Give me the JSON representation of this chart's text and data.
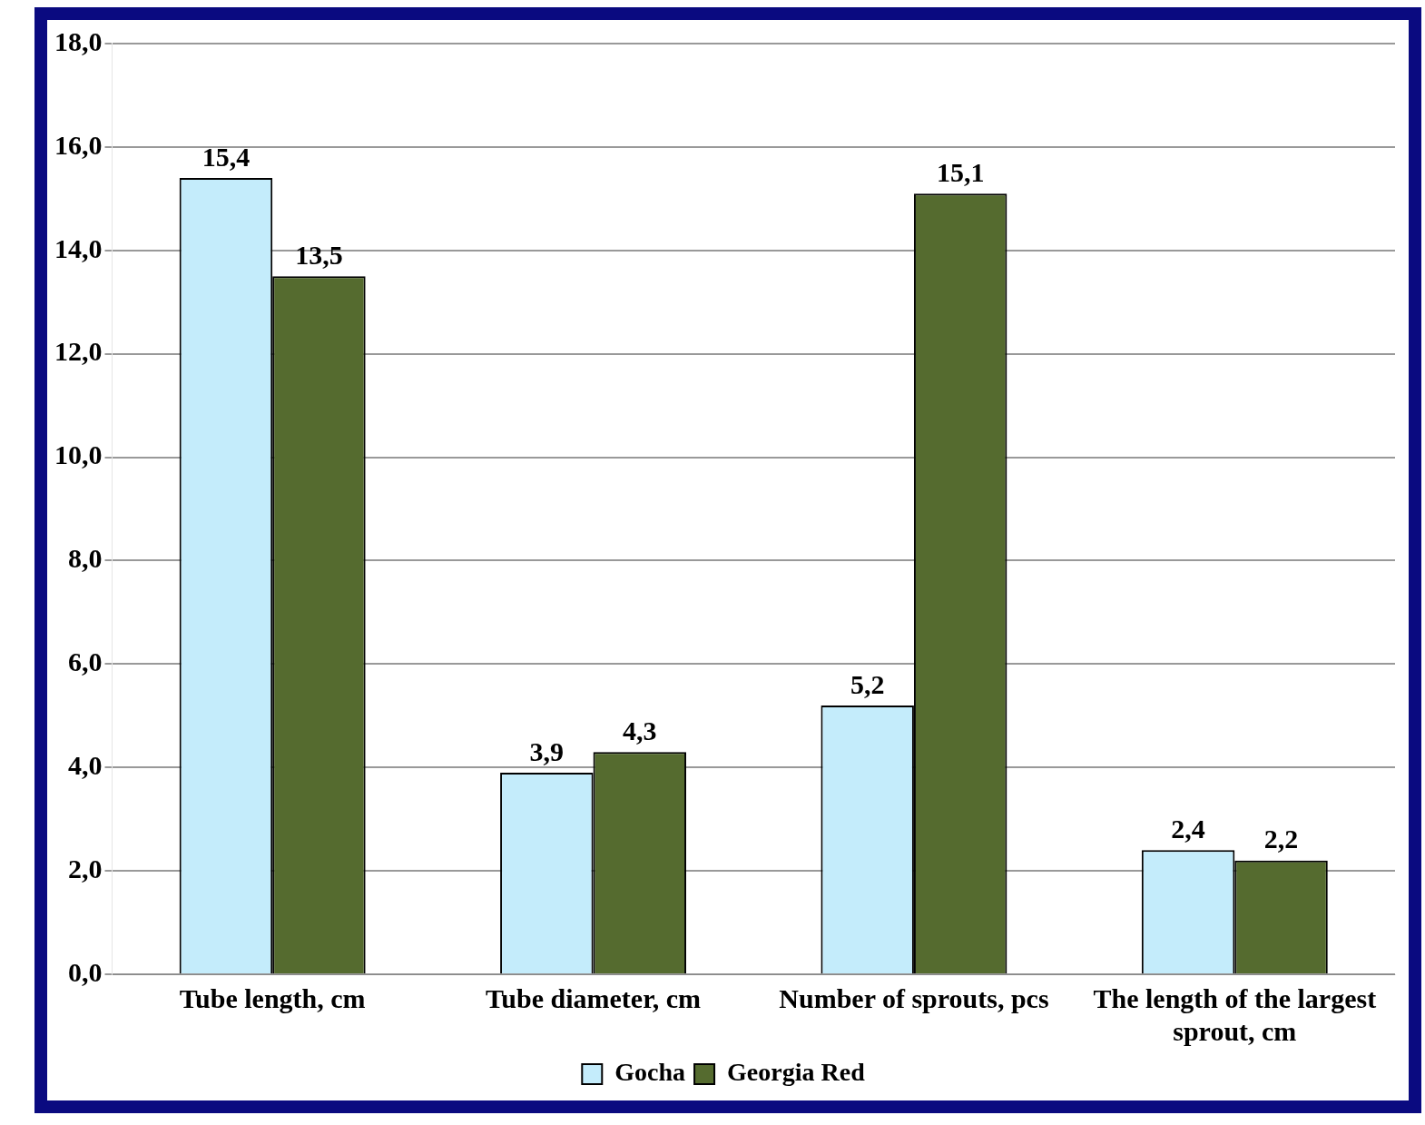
{
  "chart_data": {
    "type": "bar",
    "categories": [
      "Tube length, cm",
      "Tube diameter, cm",
      "Number of sprouts, pcs",
      "The length of the largest sprout, cm"
    ],
    "series": [
      {
        "name": "Gocha",
        "color": "#c4ecfb",
        "values": [
          15.4,
          3.9,
          5.2,
          2.4
        ],
        "value_labels": [
          "15,4",
          "3,9",
          "5,2",
          "2,4"
        ]
      },
      {
        "name": "Georgia Red",
        "color": "#556b2f",
        "values": [
          13.5,
          4.3,
          15.1,
          2.2
        ],
        "value_labels": [
          "13,5",
          "4,3",
          "15,1",
          "2,2"
        ]
      }
    ],
    "ylim": [
      0,
      18
    ],
    "yticks": [
      {
        "value": 0,
        "label": "0,0"
      },
      {
        "value": 2,
        "label": "2,0"
      },
      {
        "value": 4,
        "label": "4,0"
      },
      {
        "value": 6,
        "label": "6,0"
      },
      {
        "value": 8,
        "label": "8,0"
      },
      {
        "value": 10,
        "label": "10,0"
      },
      {
        "value": 12,
        "label": "12,0"
      },
      {
        "value": 14,
        "label": "14,0"
      },
      {
        "value": 16,
        "label": "16,0"
      },
      {
        "value": 18,
        "label": "18,0"
      }
    ],
    "grid": "y",
    "legend": "bottom"
  }
}
